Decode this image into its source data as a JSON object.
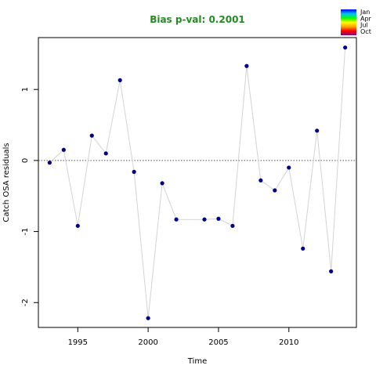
{
  "chart_data": {
    "type": "line",
    "title": "Bias p-val: 0.2001",
    "xlabel": "Time",
    "ylabel": "Catch OSA residuals",
    "xlim": [
      1992.2,
      2014.8
    ],
    "ylim": [
      -2.35,
      1.73
    ],
    "x_ticks": [
      {
        "value": 1995,
        "label": "1995"
      },
      {
        "value": 2000,
        "label": "2000"
      },
      {
        "value": 2005,
        "label": "2005"
      },
      {
        "value": 2010,
        "label": "2010"
      }
    ],
    "y_ticks": [
      {
        "value": -2,
        "label": "-2"
      },
      {
        "value": -1,
        "label": "-1"
      },
      {
        "value": 0,
        "label": "0"
      },
      {
        "value": 1,
        "label": "1"
      }
    ],
    "reference_line": {
      "y": 0,
      "style": "dotted"
    },
    "grid": false,
    "line_color": "#d3d3d3",
    "point_color": "#00008B",
    "title_color": "#228B22",
    "series": [
      {
        "x": [
          1993,
          1994,
          1995,
          1996,
          1997,
          1998,
          1999,
          2000,
          2001,
          2002,
          2004,
          2005,
          2006,
          2007,
          2008,
          2009,
          2010,
          2011,
          2012,
          2013,
          2014
        ],
        "y": [
          -0.03,
          0.15,
          -0.92,
          0.35,
          0.1,
          1.13,
          -0.16,
          -2.22,
          -0.32,
          -0.83,
          -0.83,
          -0.82,
          -0.92,
          1.33,
          -0.28,
          -0.42,
          -0.1,
          -1.24,
          0.42,
          -1.56,
          1.59
        ]
      }
    ],
    "legend": {
      "placement": "top-right",
      "labels": [
        "Jan",
        "Apr",
        "Jul",
        "Oct"
      ],
      "gradient_colors": [
        "#0000FF",
        "#00BFFF",
        "#00FF00",
        "#FFFF00",
        "#FFA500",
        "#FF0000",
        "#800080"
      ]
    }
  }
}
